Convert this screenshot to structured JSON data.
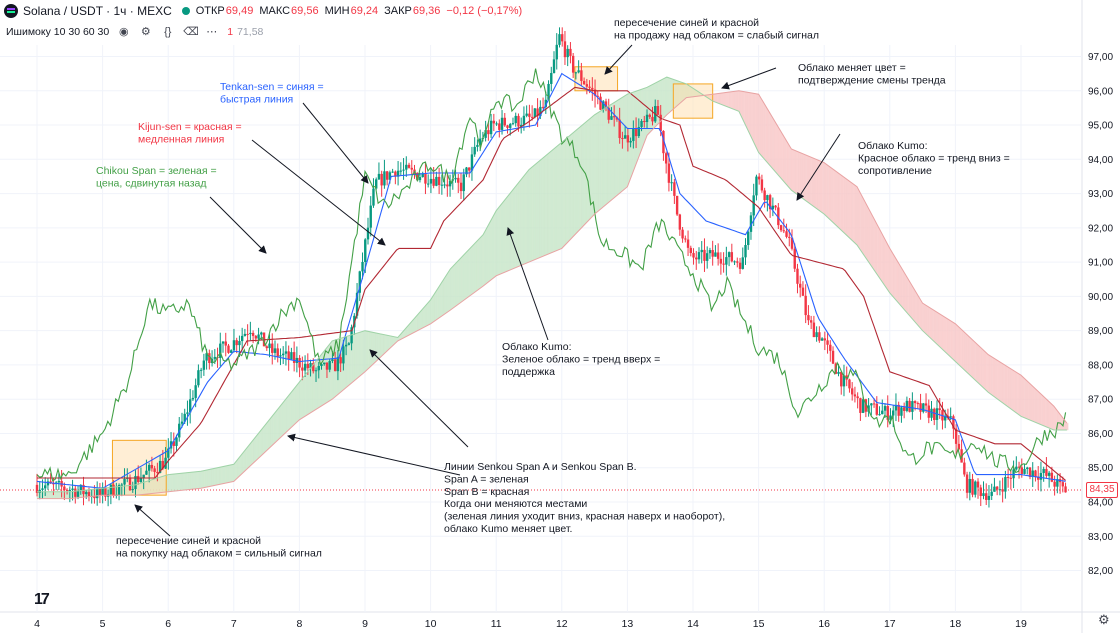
{
  "header": {
    "title": "Solana / USDT · 1ч · MEXC",
    "open_label": "ОТКР",
    "open_value": "69,49",
    "high_label": "МАКС",
    "high_value": "69,56",
    "low_label": "МИН",
    "low_value": "69,24",
    "close_label": "ЗАКР",
    "close_value": "69,36",
    "change_value": "−0,12 (−0,17%)"
  },
  "indicator": {
    "name": "Ишимоку 10 30 60 30",
    "value_1": "1",
    "value_2": "71,58",
    "icons": [
      "eye-icon",
      "gear-icon",
      "braces-icon",
      "trash-icon",
      "more-icon"
    ]
  },
  "price_axis": {
    "ticks": [
      "97,00",
      "96,00",
      "95,00",
      "94,00",
      "93,00",
      "92,00",
      "91,00",
      "90,00",
      "89,00",
      "88,00",
      "87,00",
      "86,00",
      "85,00",
      "84,00",
      "83,00",
      "82,00"
    ],
    "last_price": "84,35"
  },
  "time_axis": {
    "ticks": [
      "4",
      "5",
      "6",
      "7",
      "8",
      "9",
      "10",
      "11",
      "12",
      "13",
      "14",
      "15",
      "16",
      "17",
      "18",
      "19"
    ]
  },
  "annotations": {
    "cross_sell": [
      "пересечение синей и красной",
      "на продажу над облаком = слабый сигнал"
    ],
    "cloud_change": [
      "Облако меняет цвет =",
      "подтверждение смены тренда"
    ],
    "tenkan": [
      "Tenkan-sen = синяя =",
      "быстрая линия"
    ],
    "kijun": [
      "Kijun-sen = красная =",
      "медленная линия"
    ],
    "chikou": [
      "Chikou Span = зеленая =",
      "цена, сдвинутая назад"
    ],
    "kumo_red": [
      "Облако Kumo:",
      "Красное облако = тренд вниз =",
      "сопротивление"
    ],
    "kumo_green": [
      "Облако Kumo:",
      "Зеленое облако = тренд вверх =",
      "поддержка"
    ],
    "senkou": [
      "Линии Senkou Span A и Senkou Span B.",
      "Span A = зеленая",
      "Span B = красная",
      "",
      "Когда они меняются местами",
      "(зеленая линия уходит вниз, красная наверх и наоборот),",
      "облако Kumo меняет цвет."
    ],
    "cross_buy": [
      "пересечение синей и красной",
      "на покупку над облаком = сильный сигнал"
    ]
  },
  "colors": {
    "up": "#089981",
    "down": "#f23645",
    "tenkan": "#2962ff",
    "kijun": "#b22833",
    "chikou": "#43a047",
    "cloud_green": "#c8e6c9",
    "cloud_red": "#f8c8c8",
    "highlight": "#ffcc80"
  },
  "chart_data": {
    "type": "candlestick",
    "instrument": "Solana / USDT · 1ч · MEXC",
    "ylim": [
      81.4,
      98.1
    ],
    "x_ticks": [
      "4",
      "5",
      "6",
      "7",
      "8",
      "9",
      "10",
      "11",
      "12",
      "13",
      "14",
      "15",
      "16",
      "17",
      "18",
      "19"
    ],
    "price_path": [
      [
        4.0,
        84.5
      ],
      [
        4.5,
        84.4
      ],
      [
        5.0,
        84.2
      ],
      [
        5.5,
        84.6
      ],
      [
        6.0,
        85.2
      ],
      [
        6.3,
        86.5
      ],
      [
        6.6,
        88.2
      ],
      [
        7.0,
        88.6
      ],
      [
        7.3,
        89.1
      ],
      [
        7.6,
        88.4
      ],
      [
        8.0,
        88.1
      ],
      [
        8.3,
        87.8
      ],
      [
        8.6,
        88.0
      ],
      [
        8.8,
        88.6
      ],
      [
        9.0,
        91.0
      ],
      [
        9.2,
        93.3
      ],
      [
        9.5,
        93.7
      ],
      [
        10.0,
        93.5
      ],
      [
        10.5,
        93.2
      ],
      [
        10.8,
        94.6
      ],
      [
        11.0,
        95.0
      ],
      [
        11.3,
        95.1
      ],
      [
        11.6,
        95.2
      ],
      [
        11.8,
        95.6
      ],
      [
        12.0,
        97.6
      ],
      [
        12.2,
        96.7
      ],
      [
        12.5,
        96.0
      ],
      [
        12.8,
        95.2
      ],
      [
        13.0,
        94.6
      ],
      [
        13.3,
        95.0
      ],
      [
        13.5,
        95.4
      ],
      [
        13.6,
        94.2
      ],
      [
        13.8,
        92.4
      ],
      [
        14.0,
        91.1
      ],
      [
        14.4,
        91.2
      ],
      [
        14.8,
        91.0
      ],
      [
        15.0,
        93.5
      ],
      [
        15.2,
        92.8
      ],
      [
        15.5,
        91.6
      ],
      [
        15.8,
        89.2
      ],
      [
        16.0,
        88.8
      ],
      [
        16.3,
        87.6
      ],
      [
        16.6,
        86.8
      ],
      [
        17.0,
        86.6
      ],
      [
        17.3,
        86.8
      ],
      [
        17.7,
        86.6
      ],
      [
        18.0,
        86.3
      ],
      [
        18.2,
        84.5
      ],
      [
        18.6,
        84.2
      ],
      [
        19.0,
        85.0
      ],
      [
        19.4,
        84.8
      ],
      [
        19.7,
        84.35
      ]
    ],
    "series": [
      {
        "name": "Tenkan-sen",
        "color": "#2962ff",
        "points": [
          [
            4.0,
            84.6
          ],
          [
            5.0,
            84.4
          ],
          [
            6.0,
            85.5
          ],
          [
            6.6,
            87.5
          ],
          [
            7.0,
            88.4
          ],
          [
            7.5,
            88.3
          ],
          [
            8.0,
            88.1
          ],
          [
            8.6,
            88.2
          ],
          [
            9.0,
            90.8
          ],
          [
            9.4,
            93.5
          ],
          [
            10.0,
            93.6
          ],
          [
            10.6,
            93.6
          ],
          [
            11.0,
            94.8
          ],
          [
            11.6,
            95.0
          ],
          [
            12.0,
            96.5
          ],
          [
            12.5,
            95.9
          ],
          [
            13.0,
            94.9
          ],
          [
            13.5,
            94.9
          ],
          [
            13.8,
            93.0
          ],
          [
            14.2,
            92.2
          ],
          [
            14.8,
            91.8
          ],
          [
            15.1,
            92.8
          ],
          [
            15.5,
            91.8
          ],
          [
            15.9,
            89.4
          ],
          [
            16.3,
            88.2
          ],
          [
            16.8,
            86.9
          ],
          [
            17.5,
            86.7
          ],
          [
            18.0,
            86.4
          ],
          [
            18.3,
            84.8
          ],
          [
            19.0,
            84.8
          ],
          [
            19.7,
            84.6
          ]
        ]
      },
      {
        "name": "Kijun-sen",
        "color": "#b22833",
        "points": [
          [
            4.0,
            84.7
          ],
          [
            5.0,
            84.7
          ],
          [
            5.8,
            84.7
          ],
          [
            6.0,
            85.2
          ],
          [
            6.5,
            86.3
          ],
          [
            7.2,
            88.7
          ],
          [
            8.0,
            88.8
          ],
          [
            8.8,
            89.0
          ],
          [
            9.0,
            90.2
          ],
          [
            9.5,
            91.4
          ],
          [
            10.0,
            91.4
          ],
          [
            10.2,
            92.2
          ],
          [
            10.8,
            93.4
          ],
          [
            11.1,
            94.6
          ],
          [
            11.5,
            95.1
          ],
          [
            12.2,
            96.1
          ],
          [
            12.5,
            96.0
          ],
          [
            13.0,
            96.0
          ],
          [
            13.5,
            95.2
          ],
          [
            13.8,
            95.0
          ],
          [
            14.0,
            93.8
          ],
          [
            14.5,
            93.4
          ],
          [
            15.0,
            92.6
          ],
          [
            15.5,
            91.2
          ],
          [
            16.3,
            90.8
          ],
          [
            16.6,
            90.0
          ],
          [
            17.0,
            87.8
          ],
          [
            17.6,
            87.4
          ],
          [
            18.0,
            86.1
          ],
          [
            18.6,
            85.7
          ],
          [
            19.0,
            85.7
          ],
          [
            19.7,
            84.6
          ]
        ]
      },
      {
        "name": "Chikou Span",
        "color": "#43a047",
        "points": [
          [
            4.0,
            84.8
          ],
          [
            4.5,
            84.8
          ],
          [
            5.0,
            86.0
          ],
          [
            5.4,
            87.6
          ],
          [
            5.7,
            89.8
          ],
          [
            6.0,
            89.5
          ],
          [
            6.3,
            89.8
          ],
          [
            6.6,
            88.2
          ],
          [
            7.0,
            88.0
          ],
          [
            7.4,
            88.6
          ],
          [
            7.7,
            89.4
          ],
          [
            8.0,
            90.0
          ],
          [
            8.3,
            88.0
          ],
          [
            8.6,
            88.6
          ],
          [
            9.0,
            93.5
          ],
          [
            9.3,
            92.6
          ],
          [
            9.6,
            93.1
          ],
          [
            10.0,
            93.9
          ],
          [
            10.3,
            93.4
          ],
          [
            10.6,
            95.3
          ],
          [
            10.8,
            94.4
          ],
          [
            11.0,
            95.8
          ],
          [
            11.3,
            95.5
          ],
          [
            11.6,
            96.6
          ],
          [
            12.0,
            94.7
          ],
          [
            12.3,
            94.0
          ],
          [
            12.6,
            91.6
          ],
          [
            12.9,
            91.3
          ],
          [
            13.2,
            90.8
          ],
          [
            13.5,
            92.2
          ],
          [
            13.8,
            91.2
          ],
          [
            14.0,
            90.7
          ],
          [
            14.3,
            89.6
          ],
          [
            14.5,
            90.4
          ],
          [
            14.8,
            89.2
          ],
          [
            15.0,
            88.5
          ],
          [
            15.3,
            88.2
          ],
          [
            15.6,
            86.6
          ],
          [
            15.9,
            87.3
          ],
          [
            16.2,
            88.0
          ],
          [
            16.5,
            87.6
          ],
          [
            16.8,
            86.3
          ],
          [
            17.0,
            86.5
          ],
          [
            17.3,
            85.2
          ],
          [
            17.6,
            85.6
          ],
          [
            18.0,
            85.3
          ],
          [
            18.3,
            85.8
          ],
          [
            18.6,
            85.2
          ],
          [
            19.0,
            85.0
          ],
          [
            19.3,
            85.9
          ],
          [
            19.6,
            86.2
          ],
          [
            19.7,
            86.6
          ]
        ]
      },
      {
        "name": "Senkou Span A",
        "color": "#9fd3a7",
        "points": [
          [
            4.0,
            84.3
          ],
          [
            4.5,
            84.3
          ],
          [
            5.0,
            84.4
          ],
          [
            5.5,
            84.5
          ],
          [
            6.0,
            84.8
          ],
          [
            6.5,
            84.9
          ],
          [
            7.0,
            85.1
          ],
          [
            7.5,
            86.3
          ],
          [
            8.0,
            87.5
          ],
          [
            8.5,
            88.7
          ],
          [
            9.0,
            89.0
          ],
          [
            9.5,
            88.8
          ],
          [
            10.0,
            89.9
          ],
          [
            10.3,
            90.8
          ],
          [
            10.8,
            91.8
          ],
          [
            11.0,
            92.5
          ],
          [
            11.5,
            93.7
          ],
          [
            12.0,
            94.5
          ],
          [
            12.5,
            95.3
          ],
          [
            13.0,
            95.9
          ],
          [
            13.3,
            96.1
          ],
          [
            13.6,
            96.4
          ],
          [
            13.9,
            96.2
          ],
          [
            14.3,
            95.7
          ],
          [
            14.7,
            95.4
          ],
          [
            15.0,
            94.2
          ],
          [
            15.5,
            93.1
          ],
          [
            16.0,
            92.4
          ],
          [
            16.5,
            91.5
          ],
          [
            17.0,
            90.1
          ],
          [
            17.5,
            89.0
          ],
          [
            18.0,
            88.1
          ],
          [
            18.5,
            87.2
          ],
          [
            19.0,
            86.5
          ],
          [
            19.5,
            86.1
          ],
          [
            19.7,
            86.1
          ]
        ]
      },
      {
        "name": "Senkou Span B",
        "color": "#e8a3a3",
        "points": [
          [
            4.0,
            84.1
          ],
          [
            4.5,
            84.1
          ],
          [
            5.0,
            84.2
          ],
          [
            5.5,
            84.2
          ],
          [
            6.0,
            84.3
          ],
          [
            6.5,
            84.4
          ],
          [
            7.0,
            84.6
          ],
          [
            7.5,
            85.5
          ],
          [
            8.0,
            86.4
          ],
          [
            8.5,
            87.0
          ],
          [
            9.0,
            87.8
          ],
          [
            9.5,
            88.7
          ],
          [
            10.0,
            89.2
          ],
          [
            10.3,
            89.6
          ],
          [
            10.8,
            90.3
          ],
          [
            11.0,
            90.6
          ],
          [
            11.5,
            91.0
          ],
          [
            12.0,
            91.4
          ],
          [
            12.5,
            92.4
          ],
          [
            13.0,
            93.2
          ],
          [
            13.3,
            94.7
          ],
          [
            13.6,
            95.3
          ],
          [
            13.9,
            95.8
          ],
          [
            14.3,
            95.9
          ],
          [
            14.7,
            96.0
          ],
          [
            15.0,
            95.9
          ],
          [
            15.5,
            94.3
          ],
          [
            16.0,
            93.9
          ],
          [
            16.5,
            93.2
          ],
          [
            17.0,
            91.4
          ],
          [
            17.5,
            89.8
          ],
          [
            18.0,
            89.2
          ],
          [
            18.5,
            88.3
          ],
          [
            19.0,
            87.7
          ],
          [
            19.5,
            86.8
          ],
          [
            19.7,
            86.3
          ]
        ]
      }
    ]
  }
}
